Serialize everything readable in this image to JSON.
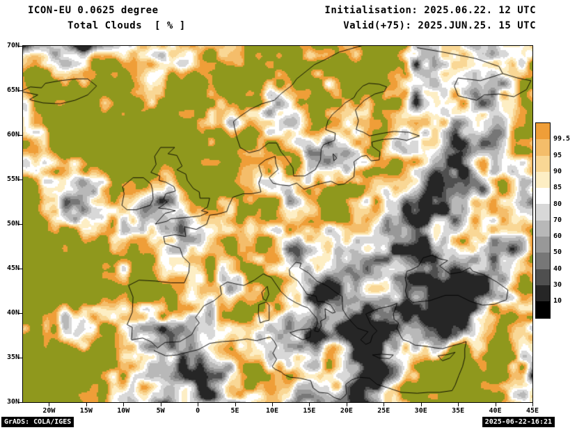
{
  "header": {
    "model_line": "ICON-EU 0.0625 degree",
    "variable_line": "Total Clouds  [ % ]",
    "init_line": "Initialisation: 2025.06.22. 12 UTC",
    "valid_line": "Valid(+75): 2025.JUN.25. 15 UTC"
  },
  "footer": {
    "credit": "GrADS: COLA/IGES",
    "timestamp": "2025-06-22-16:21",
    "box_bg": "#000000",
    "box_fg": "#ffffff"
  },
  "map": {
    "lat_ticks": [
      "70N",
      "65N",
      "60N",
      "55N",
      "50N",
      "45N",
      "40N",
      "35N",
      "30N"
    ],
    "lat_values": [
      70,
      65,
      60,
      55,
      50,
      45,
      40,
      35,
      30
    ],
    "lon_ticks": [
      "20W",
      "15W",
      "10W",
      "5W",
      "0",
      "5E",
      "10E",
      "15E",
      "20E",
      "25E",
      "30E",
      "35E",
      "40E",
      "45E"
    ],
    "lon_values": [
      -20,
      -15,
      -10,
      -5,
      0,
      5,
      10,
      15,
      20,
      25,
      30,
      35,
      40,
      45
    ],
    "clear_sky_color": "#8f981d",
    "coastline_color": "#000000",
    "frame_color": "#000000"
  },
  "legend": {
    "labels": [
      "99.5",
      "95",
      "90",
      "85",
      "80",
      "70",
      "60",
      "50",
      "40",
      "30",
      "10"
    ],
    "colors": [
      "#ef9e38",
      "#f4bd6a",
      "#f9d795",
      "#fdeec4",
      "#ffffff",
      "#d8d8d8",
      "#b8b8b8",
      "#989898",
      "#777777",
      "#4f4f4f",
      "#262626",
      "#000000"
    ]
  },
  "chart_data": {
    "type": "heatmap",
    "title": "Total Clouds  [ % ]",
    "model": "ICON-EU 0.0625 degree",
    "initialisation": "2025.06.22. 12 UTC",
    "valid_time": "2025.JUN.25. 15 UTC",
    "forecast_lead_hours": 75,
    "units": "%",
    "lon_range_deg": [
      -23.5,
      45.0
    ],
    "lat_range_deg": [
      30.0,
      70.0
    ],
    "lat_tick_labels": [
      "70N",
      "65N",
      "60N",
      "55N",
      "50N",
      "45N",
      "40N",
      "35N",
      "30N"
    ],
    "lon_tick_labels": [
      "20W",
      "15W",
      "10W",
      "5W",
      "0",
      "5E",
      "10E",
      "15E",
      "20E",
      "25E",
      "30E",
      "35E",
      "40E",
      "45E"
    ],
    "colorbar_levels_percent": [
      99.5,
      95,
      90,
      85,
      80,
      70,
      60,
      50,
      40,
      30,
      10
    ],
    "colorbar_colors_top_to_bottom": [
      "#ef9e38",
      "#f4bd6a",
      "#f9d795",
      "#fdeec4",
      "#ffffff",
      "#d8d8d8",
      "#b8b8b8",
      "#989898",
      "#777777",
      "#4f4f4f",
      "#262626",
      "#000000"
    ],
    "clear_sky_background_color": "#8f981d",
    "legend_position": "right",
    "pattern_notes": "Clear (olive) air mass over NE Atlantic/France and over Scandinavia-Russia, fringed by overcast orange bands; grey broken cloud over central/eastern Europe; thin pale cloud over the Mediterranean."
  }
}
